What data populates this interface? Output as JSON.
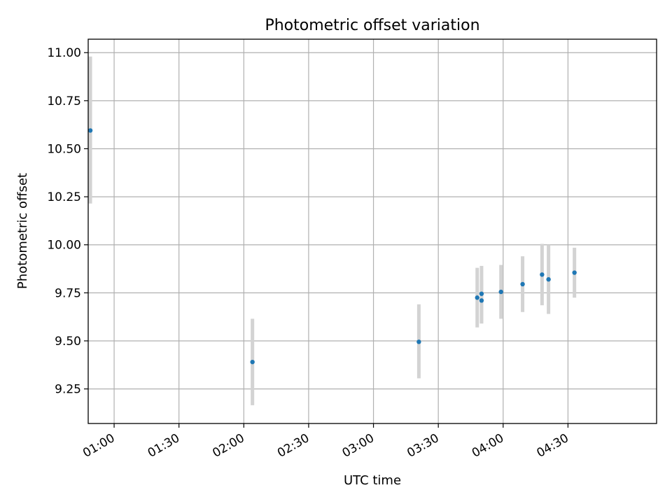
{
  "chart_data": {
    "type": "scatter",
    "title": "Photometric offset variation",
    "xlabel": "UTC time",
    "ylabel": "Photometric offset",
    "x_axis_kind": "time",
    "xlim": [
      "00:48",
      "05:11"
    ],
    "ylim": [
      9.07,
      11.07
    ],
    "grid": true,
    "xticks": [
      "01:00",
      "01:30",
      "02:00",
      "02:30",
      "03:00",
      "03:30",
      "04:00",
      "04:30"
    ],
    "yticks": [
      "9.25",
      "9.50",
      "9.75",
      "10.00",
      "10.25",
      "10.50",
      "10.75",
      "11.00"
    ],
    "series": [
      {
        "marker_color": "#1f77b4",
        "errorbar_color": "#d3d3d3",
        "points": [
          {
            "x": "00:49",
            "y": 10.595,
            "err_low": 10.215,
            "err_high": 10.98
          },
          {
            "x": "02:04",
            "y": 9.39,
            "err_low": 9.165,
            "err_high": 9.615
          },
          {
            "x": "03:21",
            "y": 9.495,
            "err_low": 9.305,
            "err_high": 9.69
          },
          {
            "x": "03:48",
            "y": 9.725,
            "err_low": 9.57,
            "err_high": 9.88
          },
          {
            "x": "03:50",
            "y": 9.745,
            "err_low": 9.59,
            "err_high": 9.89
          },
          {
            "x": "03:50",
            "y": 9.71,
            "err_low": 9.595,
            "err_high": 9.82
          },
          {
            "x": "03:59",
            "y": 9.755,
            "err_low": 9.615,
            "err_high": 9.895
          },
          {
            "x": "04:09",
            "y": 9.795,
            "err_low": 9.65,
            "err_high": 9.94
          },
          {
            "x": "04:18",
            "y": 9.845,
            "err_low": 9.685,
            "err_high": 10.005
          },
          {
            "x": "04:21",
            "y": 9.82,
            "err_low": 9.64,
            "err_high": 10.0
          },
          {
            "x": "04:33",
            "y": 9.855,
            "err_low": 9.725,
            "err_high": 9.985
          }
        ]
      }
    ]
  }
}
